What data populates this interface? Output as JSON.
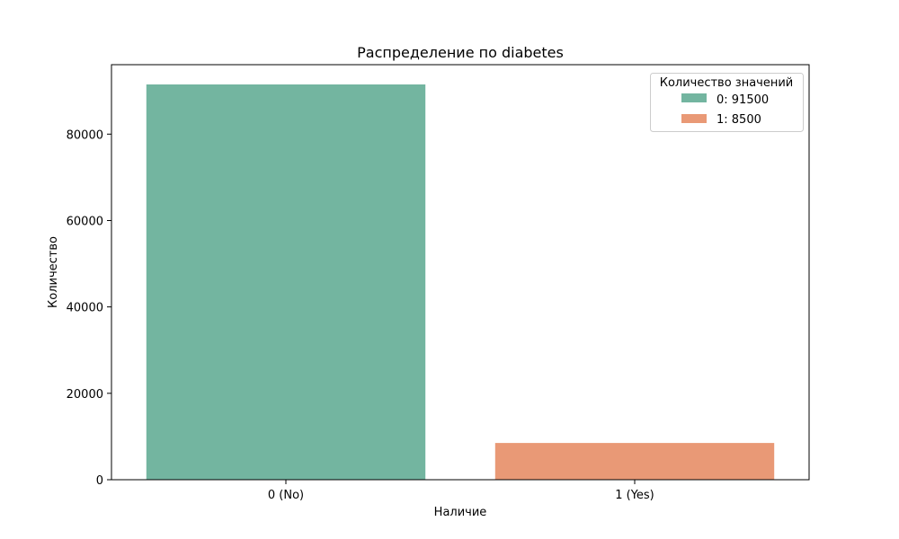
{
  "chart_data": {
    "type": "bar",
    "title": "Распределение по diabetes",
    "xlabel": "Наличие",
    "ylabel": "Количество",
    "categories": [
      "0 (No)",
      "1 (Yes)"
    ],
    "values": [
      91500,
      8500
    ],
    "colors": [
      "#73b5a0",
      "#e99976"
    ],
    "ylim": [
      0,
      96075
    ],
    "yticks": [
      0,
      20000,
      40000,
      60000,
      80000
    ],
    "grid": false,
    "legend": {
      "title": "Количество значений",
      "placement": "top-right",
      "entries": [
        "0: 91500",
        "1: 8500"
      ]
    }
  }
}
